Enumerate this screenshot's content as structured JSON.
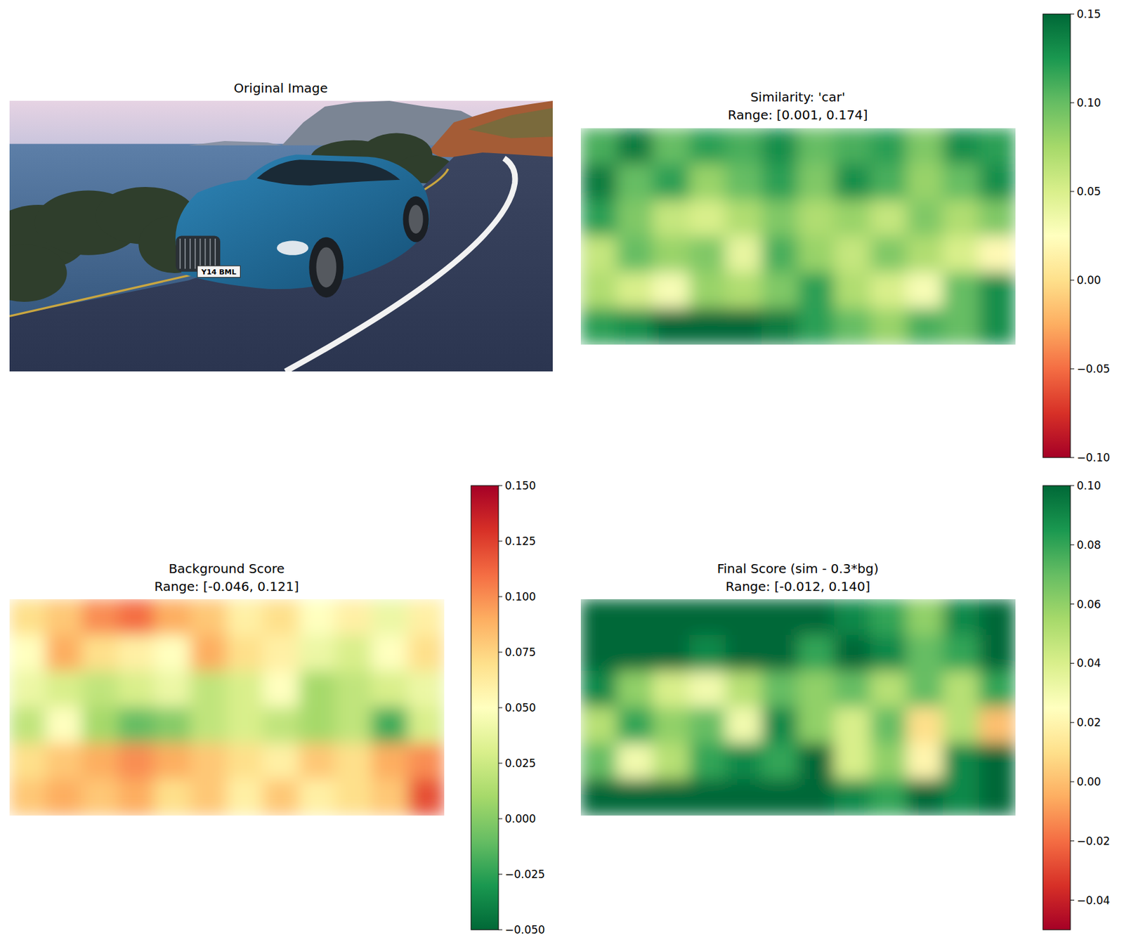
{
  "chart_data": [
    {
      "type": "image",
      "title": "Original Image",
      "annotation": "Y14 BML"
    },
    {
      "type": "heatmap",
      "title": "Similarity: 'car'",
      "subtitle": "Range: [0.001, 0.174]",
      "color": "RdYlGn",
      "tick_labels": false,
      "cells": [
        [
          0.11,
          0.14,
          0.1,
          0.12,
          0.11,
          0.13,
          0.1,
          0.11,
          0.12,
          0.09,
          0.13,
          0.12
        ],
        [
          0.14,
          0.1,
          0.12,
          0.08,
          0.1,
          0.12,
          0.09,
          0.13,
          0.11,
          0.08,
          0.1,
          0.13
        ],
        [
          0.12,
          0.09,
          0.06,
          0.05,
          0.07,
          0.09,
          0.07,
          0.08,
          0.06,
          0.09,
          0.07,
          0.09
        ],
        [
          0.06,
          0.1,
          0.08,
          0.09,
          0.04,
          0.11,
          0.08,
          0.06,
          0.09,
          0.07,
          0.05,
          0.02
        ],
        [
          0.07,
          0.05,
          0.03,
          0.08,
          0.07,
          0.09,
          0.12,
          0.07,
          0.05,
          0.03,
          0.1,
          0.13
        ],
        [
          0.12,
          0.13,
          0.15,
          0.17,
          0.16,
          0.14,
          0.12,
          0.1,
          0.08,
          0.11,
          0.1,
          0.13
        ]
      ],
      "colorbar": {
        "range": [
          -0.1,
          0.15
        ],
        "ticks": [
          {
            "value": -0.1,
            "label": "−0.10"
          },
          {
            "value": -0.05,
            "label": "−0.05"
          },
          {
            "value": 0,
            "label": "0.00"
          },
          {
            "value": 0.05,
            "label": "0.05"
          },
          {
            "value": 0.1,
            "label": "0.10"
          },
          {
            "value": 0.15,
            "label": "0.15"
          }
        ]
      }
    },
    {
      "type": "heatmap",
      "title": "Background Score",
      "subtitle": "Range: [-0.046, 0.121]",
      "color": "RdYlGn_r",
      "tick_labels": false,
      "cells": [
        [
          0.07,
          0.08,
          0.1,
          0.11,
          0.09,
          0.08,
          0.06,
          0.07,
          0.05,
          0.06,
          0.04,
          0.06
        ],
        [
          0.05,
          0.09,
          0.07,
          0.06,
          0.05,
          0.09,
          0.07,
          0.06,
          0.04,
          0.03,
          0.05,
          0.07
        ],
        [
          0.04,
          0.03,
          0.02,
          0.03,
          0.04,
          0.02,
          0.03,
          0.05,
          0.01,
          0.02,
          0.03,
          0.04
        ],
        [
          0.02,
          0.05,
          0.01,
          -0.01,
          0.0,
          0.02,
          0.03,
          0.02,
          0.01,
          0.02,
          -0.02,
          0.03
        ],
        [
          0.07,
          0.08,
          0.09,
          0.1,
          0.09,
          0.08,
          0.07,
          0.06,
          0.08,
          0.07,
          0.09,
          0.1
        ],
        [
          0.08,
          0.09,
          0.08,
          0.09,
          0.07,
          0.08,
          0.06,
          0.08,
          0.06,
          0.07,
          0.08,
          0.12
        ]
      ],
      "colorbar": {
        "range": [
          -0.05,
          0.15
        ],
        "ticks": [
          {
            "value": -0.05,
            "label": "−0.050"
          },
          {
            "value": -0.025,
            "label": "−0.025"
          },
          {
            "value": 0,
            "label": "0.000"
          },
          {
            "value": 0.025,
            "label": "0.025"
          },
          {
            "value": 0.05,
            "label": "0.050"
          },
          {
            "value": 0.075,
            "label": "0.075"
          },
          {
            "value": 0.1,
            "label": "0.100"
          },
          {
            "value": 0.125,
            "label": "0.125"
          },
          {
            "value": 0.15,
            "label": "0.150"
          }
        ]
      }
    },
    {
      "type": "heatmap",
      "title": "Final Score (sim - 0.3*bg)",
      "subtitle": "Range: [-0.012, 0.140]",
      "color": "RdYlGn",
      "tick_labels": false,
      "cells": [
        [
          0.1,
          0.1,
          0.1,
          0.1,
          0.1,
          0.1,
          0.1,
          0.09,
          0.08,
          0.06,
          0.09,
          0.1
        ],
        [
          0.1,
          0.1,
          0.1,
          0.09,
          0.1,
          0.1,
          0.08,
          0.1,
          0.09,
          0.07,
          0.08,
          0.1
        ],
        [
          0.09,
          0.06,
          0.04,
          0.03,
          0.05,
          0.07,
          0.06,
          0.07,
          0.05,
          0.07,
          0.05,
          0.08
        ],
        [
          0.05,
          0.08,
          0.06,
          0.07,
          0.03,
          0.09,
          0.06,
          0.04,
          0.07,
          0.01,
          0.05,
          0.0
        ],
        [
          0.07,
          0.03,
          0.05,
          0.08,
          0.09,
          0.08,
          0.1,
          0.04,
          0.06,
          0.02,
          0.09,
          0.1
        ],
        [
          0.1,
          0.1,
          0.1,
          0.1,
          0.1,
          0.1,
          0.1,
          0.09,
          0.08,
          0.1,
          0.09,
          0.1
        ]
      ],
      "colorbar": {
        "range": [
          -0.05,
          0.1
        ],
        "ticks": [
          {
            "value": -0.04,
            "label": "−0.04"
          },
          {
            "value": -0.02,
            "label": "−0.02"
          },
          {
            "value": 0,
            "label": "0.00"
          },
          {
            "value": 0.02,
            "label": "0.02"
          },
          {
            "value": 0.04,
            "label": "0.04"
          },
          {
            "value": 0.06,
            "label": "0.06"
          },
          {
            "value": 0.08,
            "label": "0.08"
          },
          {
            "value": 0.1,
            "label": "0.10"
          }
        ]
      }
    }
  ]
}
